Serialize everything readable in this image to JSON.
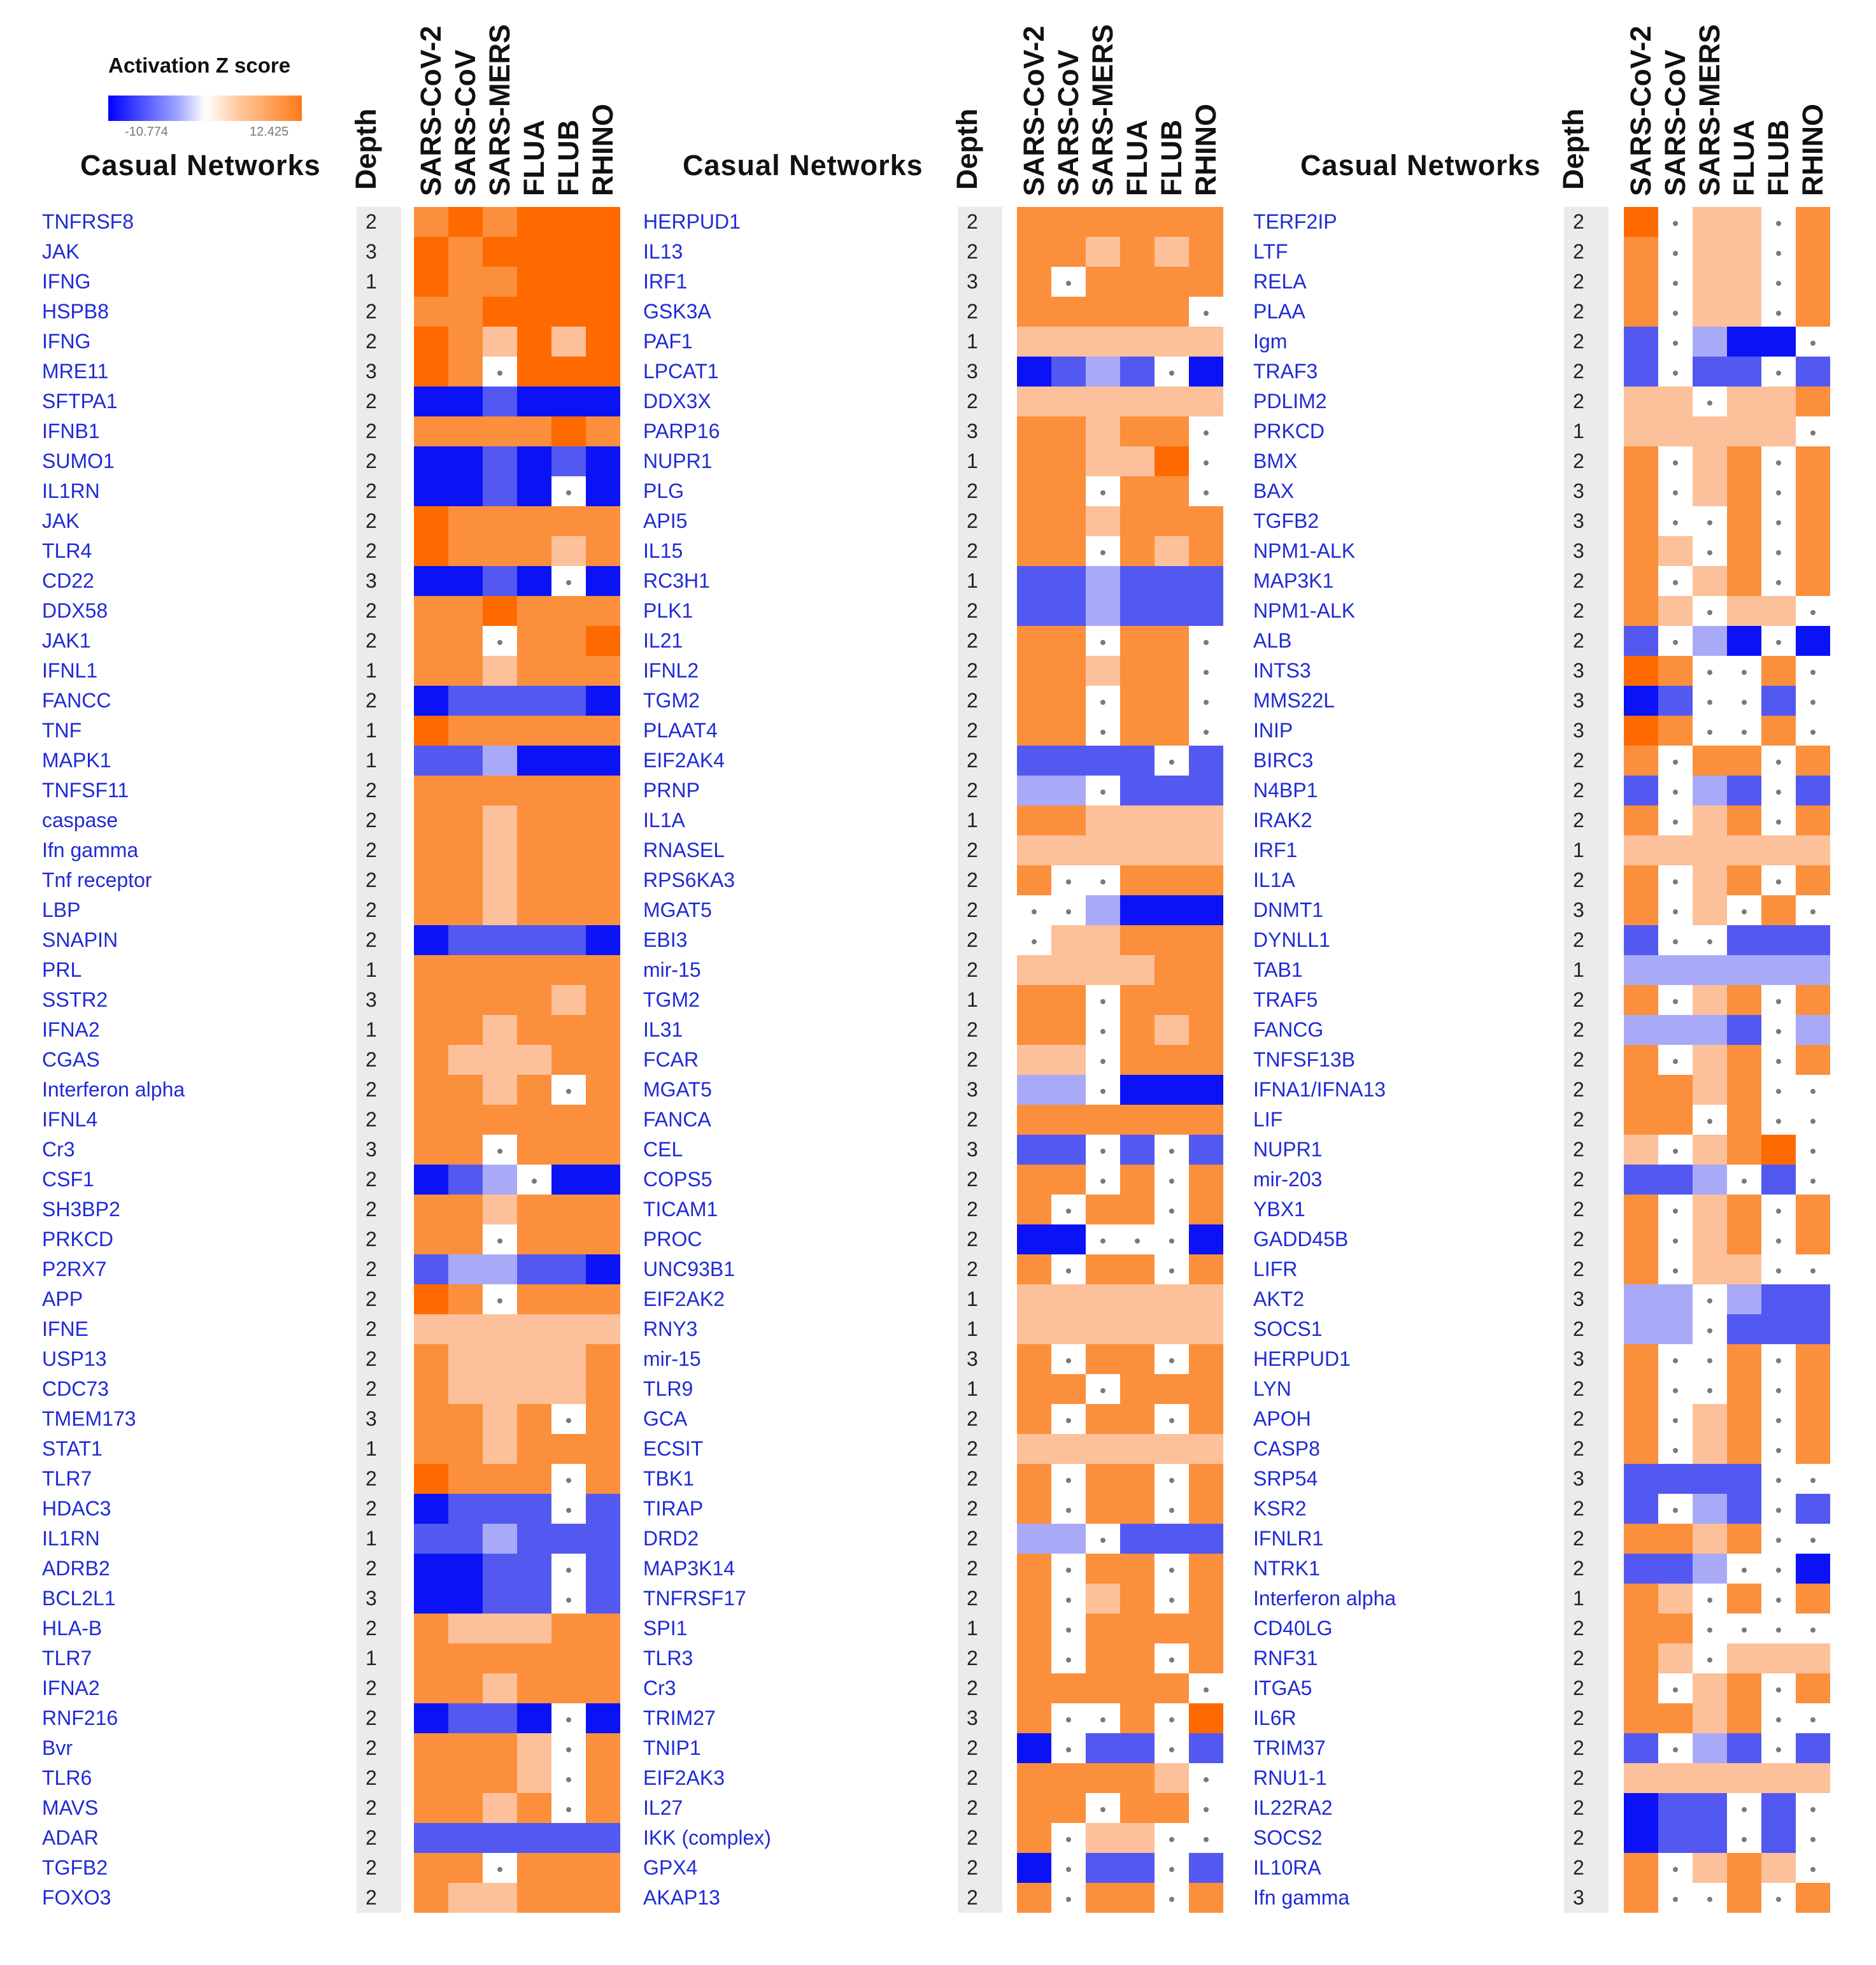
{
  "legend": {
    "title": "Activation Z score",
    "min_label": "-10.774",
    "max_label": "12.425",
    "min": -10.774,
    "max": 12.425,
    "colors": {
      "negative": "#0000ff",
      "neutral": "#ffffff",
      "positive": "#ff6a00"
    }
  },
  "chart_data": {
    "type": "heatmap",
    "title": "Activation Z score",
    "columns": [
      "SARS-CoV-2",
      "SARS-CoV",
      "SARS-MERS",
      "FLUA",
      "FLUB",
      "RHINO"
    ],
    "row_header": "Casual Networks",
    "depth_header": "Depth",
    "value_key": "z_symbols: O=strong positive, o=moderate positive, p=weak positive, w=neutral, l=weak negative, b=moderate negative, B=strong negative, .=not significant",
    "panels": [
      {
        "header_title": "Casual Networks",
        "rows": [
          {
            "label": "TNFRSF8",
            "depth": "2",
            "cells": "oOoOOO"
          },
          {
            "label": "JAK",
            "depth": "3",
            "cells": "OoOOOO"
          },
          {
            "label": "IFNG",
            "depth": "1",
            "cells": "OooOOO"
          },
          {
            "label": "HSPB8",
            "depth": "2",
            "cells": "ooOOOO"
          },
          {
            "label": "IFNG",
            "depth": "2",
            "cells": "OopOpO"
          },
          {
            "label": "MRE11",
            "depth": "3",
            "cells": "Oo.OOO"
          },
          {
            "label": "SFTPA1",
            "depth": "2",
            "cells": "BBbBBB"
          },
          {
            "label": "IFNB1",
            "depth": "2",
            "cells": "ooooOo"
          },
          {
            "label": "SUMO1",
            "depth": "2",
            "cells": "BBbBbB"
          },
          {
            "label": "IL1RN",
            "depth": "2",
            "cells": "BBbB.B"
          },
          {
            "label": "JAK",
            "depth": "2",
            "cells": "Oooooo"
          },
          {
            "label": "TLR4",
            "depth": "2",
            "cells": "Oooopo"
          },
          {
            "label": "CD22",
            "depth": "3",
            "cells": "BBbB.B"
          },
          {
            "label": "DDX58",
            "depth": "2",
            "cells": "ooOooo"
          },
          {
            "label": "JAK1",
            "depth": "2",
            "cells": "oo.ooO"
          },
          {
            "label": "IFNL1",
            "depth": "1",
            "cells": "oopooo"
          },
          {
            "label": "FANCC",
            "depth": "2",
            "cells": "BbbbbB"
          },
          {
            "label": "TNF",
            "depth": "1",
            "cells": "Oooooo"
          },
          {
            "label": "MAPK1",
            "depth": "1",
            "cells": "bblBBB"
          },
          {
            "label": "TNFSF11",
            "depth": "2",
            "cells": "oooooo"
          },
          {
            "label": "caspase",
            "depth": "2",
            "cells": "oopooo"
          },
          {
            "label": "Ifn gamma",
            "depth": "2",
            "cells": "oopooo"
          },
          {
            "label": "Tnf receptor",
            "depth": "2",
            "cells": "oopooo"
          },
          {
            "label": "LBP",
            "depth": "2",
            "cells": "oopooo"
          },
          {
            "label": "SNAPIN",
            "depth": "2",
            "cells": "BbbbbB"
          },
          {
            "label": "PRL",
            "depth": "1",
            "cells": "oooooo"
          },
          {
            "label": "SSTR2",
            "depth": "3",
            "cells": "oooopo"
          },
          {
            "label": "IFNA2",
            "depth": "1",
            "cells": "oopooo"
          },
          {
            "label": "CGAS",
            "depth": "2",
            "cells": "opppoo"
          },
          {
            "label": "Interferon alpha",
            "depth": "2",
            "cells": "oopo.o"
          },
          {
            "label": "IFNL4",
            "depth": "2",
            "cells": "oooooo"
          },
          {
            "label": "Cr3",
            "depth": "3",
            "cells": "oo.ooo"
          },
          {
            "label": "CSF1",
            "depth": "2",
            "cells": "Bbl.BB"
          },
          {
            "label": "SH3BP2",
            "depth": "2",
            "cells": "oopooo"
          },
          {
            "label": "PRKCD",
            "depth": "2",
            "cells": "oo.ooo"
          },
          {
            "label": "P2RX7",
            "depth": "2",
            "cells": "bllbbB"
          },
          {
            "label": "APP",
            "depth": "2",
            "cells": "Oo.ooo"
          },
          {
            "label": "IFNE",
            "depth": "2",
            "cells": "pppppp"
          },
          {
            "label": "USP13",
            "depth": "2",
            "cells": "oppppo"
          },
          {
            "label": "CDC73",
            "depth": "2",
            "cells": "oppppo"
          },
          {
            "label": "TMEM173",
            "depth": "3",
            "cells": "oopo.o"
          },
          {
            "label": "STAT1",
            "depth": "1",
            "cells": "oopooo"
          },
          {
            "label": "TLR7",
            "depth": "2",
            "cells": "Oooo.o"
          },
          {
            "label": "HDAC3",
            "depth": "2",
            "cells": "Bbbb.b"
          },
          {
            "label": "IL1RN",
            "depth": "1",
            "cells": "bblbbb"
          },
          {
            "label": "ADRB2",
            "depth": "2",
            "cells": "BBbb.b"
          },
          {
            "label": "BCL2L1",
            "depth": "3",
            "cells": "BBbb.b"
          },
          {
            "label": "HLA-B",
            "depth": "2",
            "cells": "opppoo"
          },
          {
            "label": "TLR7",
            "depth": "1",
            "cells": "oooooo"
          },
          {
            "label": "IFNA2",
            "depth": "2",
            "cells": "oopooo"
          },
          {
            "label": "RNF216",
            "depth": "2",
            "cells": "BbbB.B"
          },
          {
            "label": "Bvr",
            "depth": "2",
            "cells": "ooop.o"
          },
          {
            "label": "TLR6",
            "depth": "2",
            "cells": "ooop.o"
          },
          {
            "label": "MAVS",
            "depth": "2",
            "cells": "oopo.o"
          },
          {
            "label": "ADAR",
            "depth": "2",
            "cells": "bbbbbb"
          },
          {
            "label": "TGFB2",
            "depth": "2",
            "cells": "oo.ooo"
          },
          {
            "label": "FOXO3",
            "depth": "2",
            "cells": "oppooo"
          }
        ]
      },
      {
        "header_title": "Casual Networks",
        "rows": [
          {
            "label": "HERPUD1",
            "depth": "2",
            "cells": "oooooo"
          },
          {
            "label": "IL13",
            "depth": "2",
            "cells": "oopopo"
          },
          {
            "label": "IRF1",
            "depth": "3",
            "cells": "o.oooo"
          },
          {
            "label": "GSK3A",
            "depth": "2",
            "cells": "ooooo."
          },
          {
            "label": "PAF1",
            "depth": "1",
            "cells": "pppppp"
          },
          {
            "label": "LPCAT1",
            "depth": "3",
            "cells": "Bblb.B"
          },
          {
            "label": "DDX3X",
            "depth": "2",
            "cells": "pppppp"
          },
          {
            "label": "PARP16",
            "depth": "3",
            "cells": "oopoo."
          },
          {
            "label": "NUPR1",
            "depth": "1",
            "cells": "ooppO."
          },
          {
            "label": "PLG",
            "depth": "2",
            "cells": "oo.oo."
          },
          {
            "label": "API5",
            "depth": "2",
            "cells": "oopooo"
          },
          {
            "label": "IL15",
            "depth": "2",
            "cells": "oo.opo"
          },
          {
            "label": "RC3H1",
            "depth": "1",
            "cells": "bblbbb"
          },
          {
            "label": "PLK1",
            "depth": "2",
            "cells": "bblbbb"
          },
          {
            "label": "IL21",
            "depth": "2",
            "cells": "oo.oo."
          },
          {
            "label": "IFNL2",
            "depth": "2",
            "cells": "oopoo."
          },
          {
            "label": "TGM2",
            "depth": "2",
            "cells": "oo.oo."
          },
          {
            "label": "PLAAT4",
            "depth": "2",
            "cells": "oo.oo."
          },
          {
            "label": "EIF2AK4",
            "depth": "2",
            "cells": "bbbb.b"
          },
          {
            "label": "PRNP",
            "depth": "2",
            "cells": "ll.bbb"
          },
          {
            "label": "IL1A",
            "depth": "1",
            "cells": "oopppp"
          },
          {
            "label": "RNASEL",
            "depth": "2",
            "cells": "pppppp"
          },
          {
            "label": "RPS6KA3",
            "depth": "2",
            "cells": "o..ooo"
          },
          {
            "label": "MGAT5",
            "depth": "2",
            "cells": "..lBBB"
          },
          {
            "label": "EBI3",
            "depth": "2",
            "cells": ".ppooo"
          },
          {
            "label": "mir-15",
            "depth": "2",
            "cells": "ppppoo"
          },
          {
            "label": "TGM2",
            "depth": "1",
            "cells": "oo.ooo"
          },
          {
            "label": "IL31",
            "depth": "2",
            "cells": "oo.opo"
          },
          {
            "label": "FCAR",
            "depth": "2",
            "cells": "pp.ooo"
          },
          {
            "label": "MGAT5",
            "depth": "3",
            "cells": "ll.BBB"
          },
          {
            "label": "FANCA",
            "depth": "2",
            "cells": "oooooo"
          },
          {
            "label": "CEL",
            "depth": "3",
            "cells": "bb.b.b"
          },
          {
            "label": "COPS5",
            "depth": "2",
            "cells": "oo.o.o"
          },
          {
            "label": "TICAM1",
            "depth": "2",
            "cells": "o.oo.o"
          },
          {
            "label": "PROC",
            "depth": "2",
            "cells": "BB...B"
          },
          {
            "label": "UNC93B1",
            "depth": "2",
            "cells": "o.oo.o"
          },
          {
            "label": "EIF2AK2",
            "depth": "1",
            "cells": "pppppp"
          },
          {
            "label": "RNY3",
            "depth": "1",
            "cells": "pppppp"
          },
          {
            "label": "mir-15",
            "depth": "3",
            "cells": "o.oo.o"
          },
          {
            "label": "TLR9",
            "depth": "1",
            "cells": "oo.ooo"
          },
          {
            "label": "GCA",
            "depth": "2",
            "cells": "o.oo.o"
          },
          {
            "label": "ECSIT",
            "depth": "2",
            "cells": "pppppp"
          },
          {
            "label": "TBK1",
            "depth": "2",
            "cells": "o.oo.o"
          },
          {
            "label": "TIRAP",
            "depth": "2",
            "cells": "o.oo.o"
          },
          {
            "label": "DRD2",
            "depth": "2",
            "cells": "ll.bbb"
          },
          {
            "label": "MAP3K14",
            "depth": "2",
            "cells": "o.oo.o"
          },
          {
            "label": "TNFRSF17",
            "depth": "2",
            "cells": "o.po.o"
          },
          {
            "label": "SPI1",
            "depth": "1",
            "cells": "o.oooo"
          },
          {
            "label": "TLR3",
            "depth": "2",
            "cells": "o.oo.o"
          },
          {
            "label": "Cr3",
            "depth": "2",
            "cells": "ooooo."
          },
          {
            "label": "TRIM27",
            "depth": "3",
            "cells": "o..o.O"
          },
          {
            "label": "TNIP1",
            "depth": "2",
            "cells": "B.bb.b"
          },
          {
            "label": "EIF2AK3",
            "depth": "2",
            "cells": "oooop."
          },
          {
            "label": "IL27",
            "depth": "2",
            "cells": "oo.oo."
          },
          {
            "label": "IKK (complex)",
            "depth": "2",
            "cells": "o.pp.."
          },
          {
            "label": "GPX4",
            "depth": "2",
            "cells": "B.bb.b"
          },
          {
            "label": "AKAP13",
            "depth": "2",
            "cells": "o.oo.o"
          }
        ]
      },
      {
        "header_title": "Casual Networks",
        "rows": [
          {
            "label": "TERF2IP",
            "depth": "2",
            "cells": "O.pp.o"
          },
          {
            "label": "LTF",
            "depth": "2",
            "cells": "o.pp.o"
          },
          {
            "label": "RELA",
            "depth": "2",
            "cells": "o.pp.o"
          },
          {
            "label": "PLAA",
            "depth": "2",
            "cells": "o.pp.o"
          },
          {
            "label": "Igm",
            "depth": "2",
            "cells": "b.lBB."
          },
          {
            "label": "TRAF3",
            "depth": "2",
            "cells": "b.bb.b"
          },
          {
            "label": "PDLIM2",
            "depth": "2",
            "cells": "pp.ppo"
          },
          {
            "label": "PRKCD",
            "depth": "1",
            "cells": "ppppp."
          },
          {
            "label": "BMX",
            "depth": "2",
            "cells": "o.po.o"
          },
          {
            "label": "BAX",
            "depth": "3",
            "cells": "o.po.o"
          },
          {
            "label": "TGFB2",
            "depth": "3",
            "cells": "o..o.o"
          },
          {
            "label": "NPM1-ALK",
            "depth": "3",
            "cells": "op.o.o"
          },
          {
            "label": "MAP3K1",
            "depth": "2",
            "cells": "o.po.o"
          },
          {
            "label": "NPM1-ALK",
            "depth": "2",
            "cells": "op.pp."
          },
          {
            "label": "ALB",
            "depth": "2",
            "cells": "b.lB.B"
          },
          {
            "label": "INTS3",
            "depth": "3",
            "cells": "Oo..o."
          },
          {
            "label": "MMS22L",
            "depth": "3",
            "cells": "Bb..b."
          },
          {
            "label": "INIP",
            "depth": "3",
            "cells": "Oo..o."
          },
          {
            "label": "BIRC3",
            "depth": "2",
            "cells": "o.oo.o"
          },
          {
            "label": "N4BP1",
            "depth": "2",
            "cells": "b.lb.b"
          },
          {
            "label": "IRAK2",
            "depth": "2",
            "cells": "o.po.o"
          },
          {
            "label": "IRF1",
            "depth": "1",
            "cells": "pppppp"
          },
          {
            "label": "IL1A",
            "depth": "2",
            "cells": "o.po.o"
          },
          {
            "label": "DNMT1",
            "depth": "3",
            "cells": "o.p.o."
          },
          {
            "label": "DYNLL1",
            "depth": "2",
            "cells": "b..bbb"
          },
          {
            "label": "TAB1",
            "depth": "1",
            "cells": "llllll"
          },
          {
            "label": "TRAF5",
            "depth": "2",
            "cells": "o.po.o"
          },
          {
            "label": "FANCG",
            "depth": "2",
            "cells": "lllb.l"
          },
          {
            "label": "TNFSF13B",
            "depth": "2",
            "cells": "o.po.o"
          },
          {
            "label": "IFNA1/IFNA13",
            "depth": "2",
            "cells": "oopo.."
          },
          {
            "label": "LIF",
            "depth": "2",
            "cells": "oo.o.."
          },
          {
            "label": "NUPR1",
            "depth": "2",
            "cells": "p.poO."
          },
          {
            "label": "mir-203",
            "depth": "2",
            "cells": "bbl.b."
          },
          {
            "label": "YBX1",
            "depth": "2",
            "cells": "o.po.o"
          },
          {
            "label": "GADD45B",
            "depth": "2",
            "cells": "o.po.o"
          },
          {
            "label": "LIFR",
            "depth": "2",
            "cells": "o.pp.."
          },
          {
            "label": "AKT2",
            "depth": "3",
            "cells": "ll.lbb"
          },
          {
            "label": "SOCS1",
            "depth": "2",
            "cells": "ll.bbb"
          },
          {
            "label": "HERPUD1",
            "depth": "3",
            "cells": "o..o.o"
          },
          {
            "label": "LYN",
            "depth": "2",
            "cells": "o..o.o"
          },
          {
            "label": "APOH",
            "depth": "2",
            "cells": "o.po.o"
          },
          {
            "label": "CASP8",
            "depth": "2",
            "cells": "o.po.o"
          },
          {
            "label": "SRP54",
            "depth": "3",
            "cells": "bbbb.."
          },
          {
            "label": "KSR2",
            "depth": "2",
            "cells": "b.lb.b"
          },
          {
            "label": "IFNLR1",
            "depth": "2",
            "cells": "oopo.."
          },
          {
            "label": "NTRK1",
            "depth": "2",
            "cells": "bbl..B"
          },
          {
            "label": "Interferon alpha",
            "depth": "1",
            "cells": "op.o.o"
          },
          {
            "label": "CD40LG",
            "depth": "2",
            "cells": "oo...."
          },
          {
            "label": "RNF31",
            "depth": "2",
            "cells": "op.ppp"
          },
          {
            "label": "ITGA5",
            "depth": "2",
            "cells": "o.po.o"
          },
          {
            "label": "IL6R",
            "depth": "2",
            "cells": "oopo.."
          },
          {
            "label": "TRIM37",
            "depth": "2",
            "cells": "b.lb.b"
          },
          {
            "label": "RNU1-1",
            "depth": "2",
            "cells": "pppppp"
          },
          {
            "label": "IL22RA2",
            "depth": "2",
            "cells": "Bbb.b."
          },
          {
            "label": "SOCS2",
            "depth": "2",
            "cells": "Bbb.b."
          },
          {
            "label": "IL10RA",
            "depth": "2",
            "cells": "o.pop."
          },
          {
            "label": "Ifn gamma",
            "depth": "3",
            "cells": "o..o.o"
          }
        ]
      }
    ]
  }
}
